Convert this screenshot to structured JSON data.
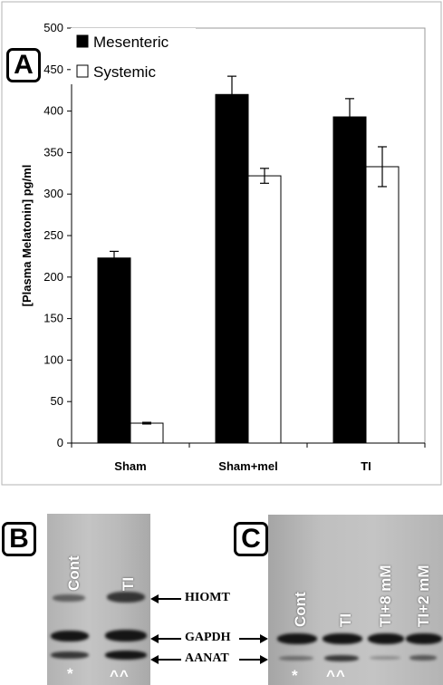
{
  "panels": {
    "a": {
      "letter": "A"
    },
    "b": {
      "letter": "B",
      "lanes": [
        "Cont",
        "TI"
      ],
      "band_labels": [
        "HIOMT",
        "GAPDH",
        "AANAT"
      ],
      "marks": [
        "*",
        "^^"
      ]
    },
    "c": {
      "letter": "C",
      "lanes": [
        "Cont",
        "TI",
        "TI+8 mM",
        "TI+2 mM"
      ],
      "marks": [
        "*",
        "^^"
      ]
    }
  },
  "chart_data": {
    "type": "bar",
    "title": "",
    "xlabel": "",
    "ylabel": "[Plasma Melatonin] pg/ml",
    "ylim": [
      0,
      500
    ],
    "yticks": [
      0,
      50,
      100,
      150,
      200,
      250,
      300,
      350,
      400,
      450,
      500
    ],
    "categories": [
      "Sham",
      "Sham+mel",
      "TI"
    ],
    "legend_position": "top-left",
    "grid": false,
    "series": [
      {
        "name": "Mesenteric",
        "color": "#000000",
        "values": [
          223,
          420,
          393
        ],
        "errors": [
          8,
          22,
          22
        ]
      },
      {
        "name": "Systemic",
        "color": "#ffffff",
        "values": [
          24,
          322,
          333
        ],
        "errors": [
          1,
          9,
          24
        ]
      }
    ]
  }
}
